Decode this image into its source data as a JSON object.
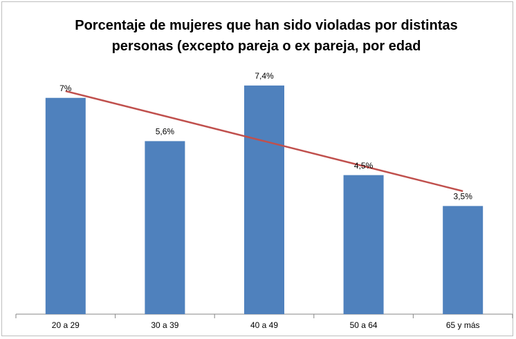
{
  "chart_data": {
    "type": "bar",
    "title": "Porcentaje de mujeres que han sido violadas por distintas personas (excepto pareja o ex pareja, por edad",
    "categories": [
      "20 a 29",
      "30 a 39",
      "40 a 49",
      "50 a 64",
      "65 y más"
    ],
    "values": [
      7,
      5.6,
      7.4,
      4.5,
      3.5
    ],
    "value_labels": [
      "7%",
      "5,6%",
      "7,4%",
      "4,5%",
      "3,5%"
    ],
    "color": "#4f81bd",
    "ylim": [
      0,
      8
    ],
    "trendline": {
      "type": "linear",
      "color": "#c0504d"
    }
  }
}
